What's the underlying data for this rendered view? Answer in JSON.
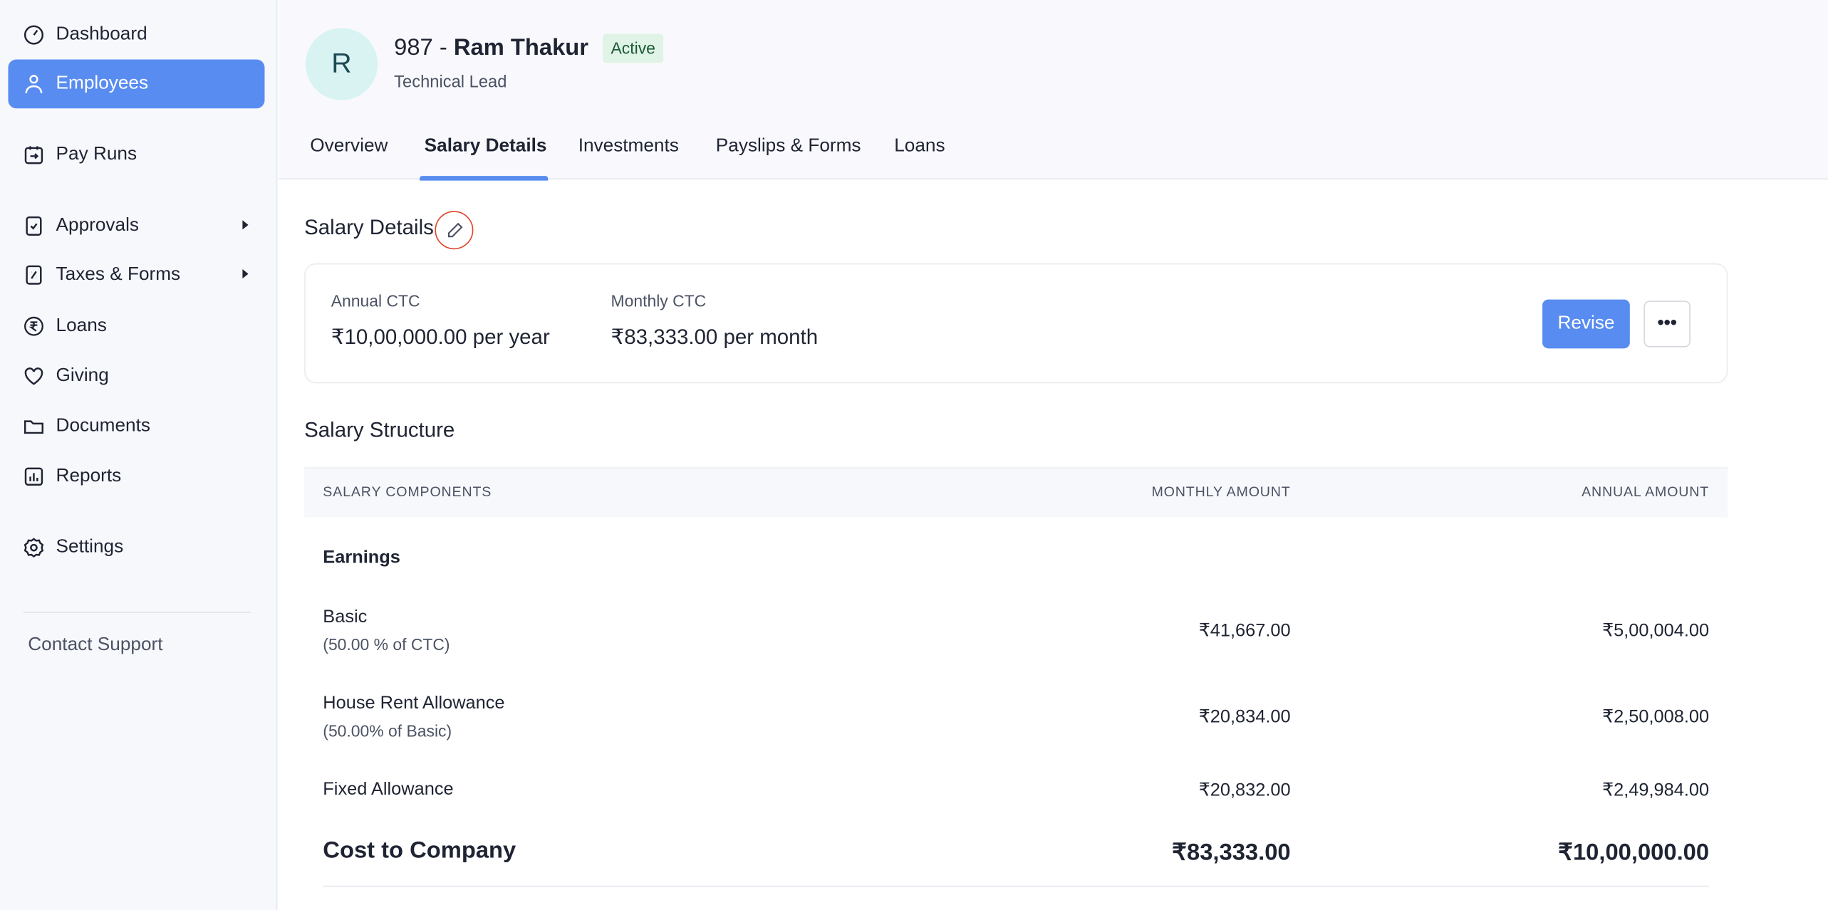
{
  "sidebar": {
    "items": [
      {
        "label": "Dashboard",
        "icon": "dashboard-gauge-icon"
      },
      {
        "label": "Employees",
        "icon": "user-icon",
        "active": true
      },
      {
        "label": "Pay Runs",
        "icon": "pay-runs-icon"
      },
      {
        "label": "Approvals",
        "icon": "approvals-icon",
        "submenu": true
      },
      {
        "label": "Taxes & Forms",
        "icon": "taxes-icon",
        "submenu": true
      },
      {
        "label": "Loans",
        "icon": "rupee-icon"
      },
      {
        "label": "Giving",
        "icon": "heart-icon"
      },
      {
        "label": "Documents",
        "icon": "folder-icon"
      },
      {
        "label": "Reports",
        "icon": "reports-icon"
      },
      {
        "label": "Settings",
        "icon": "gear-icon"
      }
    ],
    "contact_support": "Contact Support"
  },
  "employee": {
    "initial": "R",
    "id": "987 -",
    "name": "Ram Thakur",
    "status": "Active",
    "designation": "Technical Lead"
  },
  "tabs": [
    {
      "label": "Overview"
    },
    {
      "label": "Salary Details",
      "active": true
    },
    {
      "label": "Investments"
    },
    {
      "label": "Payslips & Forms"
    },
    {
      "label": "Loans"
    }
  ],
  "salary_details": {
    "title": "Salary Details",
    "annual_label": "Annual CTC",
    "annual_value": "₹10,00,000.00 per year",
    "monthly_label": "Monthly CTC",
    "monthly_value": "₹83,333.00 per month",
    "revise_label": "Revise"
  },
  "structure": {
    "title": "Salary Structure",
    "headers": [
      "SALARY COMPONENTS",
      "MONTHLY AMOUNT",
      "ANNUAL AMOUNT"
    ],
    "section": "Earnings",
    "rows": [
      {
        "name": "Basic",
        "note": "(50.00 % of CTC)",
        "monthly": "₹41,667.00",
        "annual": "₹5,00,004.00"
      },
      {
        "name": "House Rent Allowance",
        "note": "(50.00% of Basic)",
        "monthly": "₹20,834.00",
        "annual": "₹2,50,008.00"
      },
      {
        "name": "Fixed Allowance",
        "monthly": "₹20,832.00",
        "annual": "₹2,49,984.00"
      }
    ],
    "total": {
      "name": "Cost to Company",
      "monthly": "₹83,333.00",
      "annual": "₹10,00,000.00"
    }
  },
  "colors": {
    "accent": "#588cf1",
    "active_badge_bg": "#dff3e6",
    "highlight": "#e0442c"
  }
}
